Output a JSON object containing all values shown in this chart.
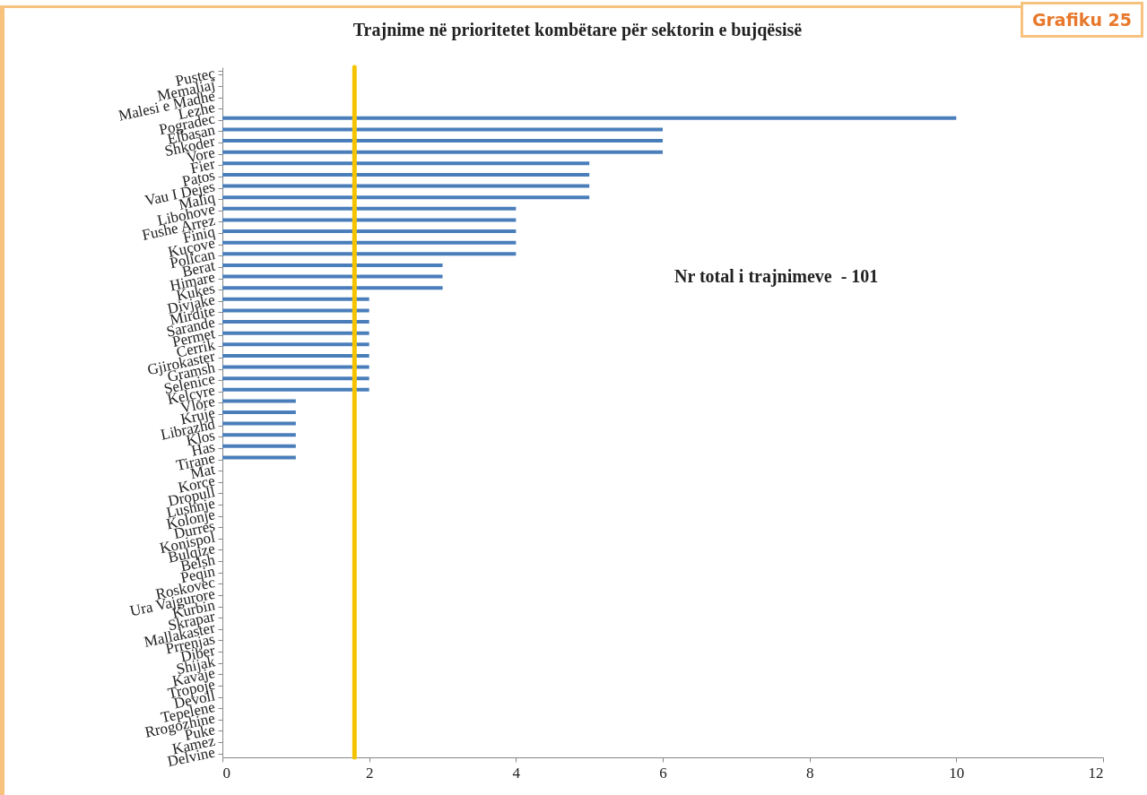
{
  "chart_data": {
    "type": "bar",
    "orientation": "horizontal",
    "title": "Trajnime në prioritetet kombëtare për sektorin e bujqësisë",
    "categories": [
      "Pusteç",
      "Memaliaj",
      "Malesi e Madhe",
      "Lezhe",
      "Pogradec",
      "Elbasan",
      "Shkoder",
      "Vore",
      "Fier",
      "Patos",
      "Vau I Dejes",
      "Maliq",
      "Libohove",
      "Fushe Arrez",
      "Finiq",
      "Kuçove",
      "Polican",
      "Berat",
      "Himare",
      "Kukes",
      "Divjake",
      "Mirdite",
      "Sarande",
      "Permet",
      "Cerrik",
      "Gjirokaster",
      "Gramsh",
      "Selenice",
      "Kelcyre",
      "Vlore",
      "Kruje",
      "Librazhd",
      "Klos",
      "Has",
      "Tirane",
      "Mat",
      "Korce",
      "Dropull",
      "Lushnje",
      "Kolonje",
      "Durres",
      "Konispol",
      "Bulqize",
      "Belsh",
      "Peqin",
      "Roskovec",
      "Ura Vajgurore",
      "Kurbin",
      "Skrapar",
      "Mallakaster",
      "Prrenjas",
      "Diber",
      "Shijak",
      "Kavaje",
      "Tropoje",
      "Devoll",
      "Tepelene",
      "Rrogozhine",
      "Puke",
      "Kamez",
      "Delvine"
    ],
    "values": [
      0,
      0,
      0,
      0,
      10,
      6,
      6,
      6,
      5,
      5,
      5,
      5,
      4,
      4,
      4,
      4,
      4,
      3,
      3,
      3,
      2,
      2,
      2,
      2,
      2,
      2,
      2,
      2,
      2,
      1,
      1,
      1,
      1,
      1,
      1,
      0,
      0,
      0,
      0,
      0,
      0,
      0,
      0,
      0,
      0,
      0,
      0,
      0,
      0,
      0,
      0,
      0,
      0,
      0,
      0,
      0,
      0,
      0,
      0,
      0,
      0
    ],
    "color": "#4a7ebb",
    "xlim": [
      0,
      12
    ],
    "xticks": [
      0,
      2,
      4,
      6,
      8,
      10,
      12
    ],
    "ref_lines": [
      {
        "axis": "x",
        "value": 1.8,
        "color": "#f5c400"
      }
    ],
    "annotations": [
      "Nr total i trajnimeve  - 101",
      "Grafiku 25"
    ]
  }
}
